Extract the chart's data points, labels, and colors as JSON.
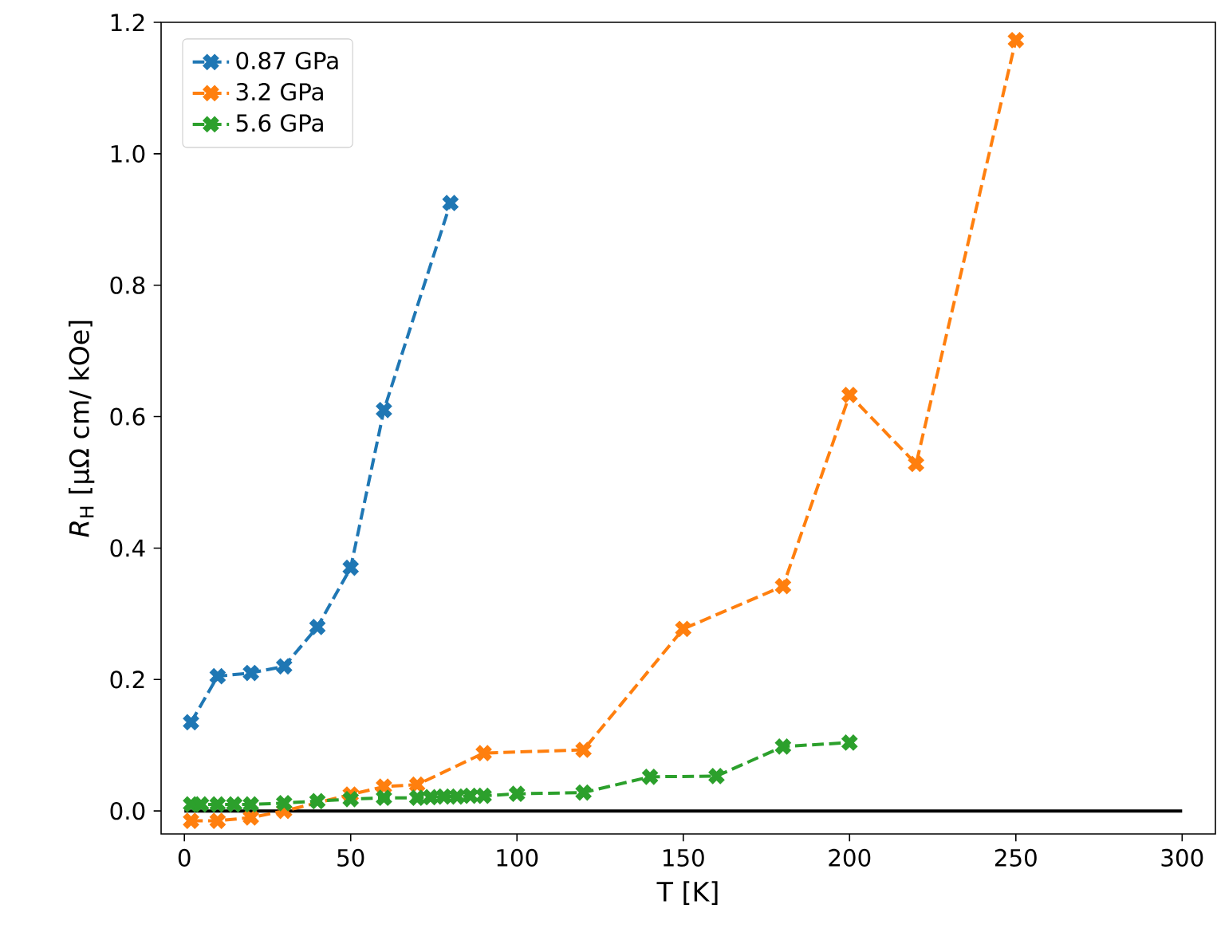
{
  "chart_data": {
    "type": "line",
    "xlabel": "T [K]",
    "ylabel": "*R*$_{H}$ [μΩ cm/ kOe]",
    "xlim": [
      -7,
      310
    ],
    "ylim": [
      -0.035,
      1.2
    ],
    "xticks": [
      0,
      50,
      100,
      150,
      200,
      250,
      300
    ],
    "yticks": [
      {
        "value": 0,
        "label": "0.0"
      },
      {
        "value": 0.2,
        "label": "0.2"
      },
      {
        "value": 0.4,
        "label": "0.4"
      },
      {
        "value": 0.6,
        "label": "0.6"
      },
      {
        "value": 0.8,
        "label": "0.8"
      },
      {
        "value": 1.0,
        "label": "1.0"
      },
      {
        "value": 1.2,
        "label": "1.2"
      }
    ],
    "grid": false,
    "legend": "top left",
    "marker": "cross",
    "line_style": "dashed",
    "ref_lines": [
      {
        "axis": "y",
        "value": 0,
        "color": "#000000",
        "line_style": "solid"
      }
    ],
    "series": [
      {
        "name": "0.87 GPa",
        "color": "#1f77b4",
        "x": [
          2,
          10,
          20,
          30,
          40,
          50,
          60,
          80
        ],
        "values": [
          0.135,
          0.205,
          0.21,
          0.22,
          0.28,
          0.37,
          0.61,
          0.925
        ]
      },
      {
        "name": "3.2 GPa",
        "color": "#ff7f0e",
        "x": [
          2,
          10,
          20,
          30,
          50,
          60,
          70,
          90,
          120,
          150,
          180,
          200,
          220,
          250
        ],
        "values": [
          -0.015,
          -0.015,
          -0.01,
          0.0,
          0.025,
          0.037,
          0.04,
          0.088,
          0.093,
          0.277,
          0.342,
          0.633,
          0.528,
          1.173
        ]
      },
      {
        "name": "5.6 GPa",
        "color": "#2ca02c",
        "x": [
          2,
          5,
          10,
          15,
          20,
          30,
          40,
          50,
          60,
          70,
          74,
          78,
          82,
          86,
          90,
          100,
          120,
          140,
          160,
          180,
          200
        ],
        "values": [
          0.01,
          0.01,
          0.01,
          0.01,
          0.01,
          0.012,
          0.015,
          0.018,
          0.02,
          0.02,
          0.021,
          0.022,
          0.022,
          0.023,
          0.023,
          0.026,
          0.028,
          0.052,
          0.053,
          0.098,
          0.104
        ]
      }
    ]
  }
}
